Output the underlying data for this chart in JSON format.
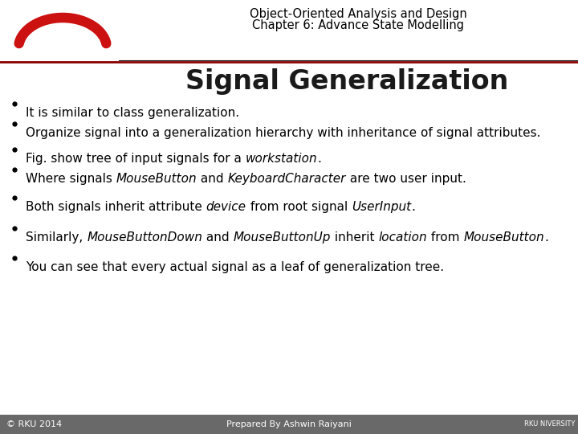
{
  "title_line1": "Object-Oriented Analysis and Design",
  "title_line2": "Chapter 6: Advance State Modelling",
  "slide_title": "Signal Generalization",
  "bullets": [
    [
      {
        "text": "It is similar to class generalization.",
        "italic": false
      }
    ],
    [
      {
        "text": "Organize signal into a generalization hierarchy with inheritance of signal attributes.",
        "italic": false
      }
    ],
    [
      {
        "text": "Fig. show tree of input signals for a ",
        "italic": false
      },
      {
        "text": "workstation",
        "italic": true
      },
      {
        "text": ".",
        "italic": false
      }
    ],
    [
      {
        "text": "Where signals ",
        "italic": false
      },
      {
        "text": "MouseButton",
        "italic": true
      },
      {
        "text": " and ",
        "italic": false
      },
      {
        "text": "KeyboardCharacter",
        "italic": true
      },
      {
        "text": " are two user input.",
        "italic": false
      }
    ],
    [
      {
        "text": "Both signals inherit attribute ",
        "italic": false
      },
      {
        "text": "device",
        "italic": true
      },
      {
        "text": " from root signal ",
        "italic": false
      },
      {
        "text": "UserInput",
        "italic": true
      },
      {
        "text": ".",
        "italic": false
      }
    ],
    [
      {
        "text": "Similarly, ",
        "italic": false
      },
      {
        "text": "MouseButtonDown",
        "italic": true
      },
      {
        "text": " and ",
        "italic": false
      },
      {
        "text": "MouseButtonUp",
        "italic": true
      },
      {
        "text": " inherit ",
        "italic": false
      },
      {
        "text": "location",
        "italic": true
      },
      {
        "text": " from ",
        "italic": false
      },
      {
        "text": "MouseButton",
        "italic": true
      },
      {
        "text": ".",
        "italic": false
      }
    ],
    [
      {
        "text": "You can see that every actual signal as a leaf of generalization tree.",
        "italic": false
      }
    ]
  ],
  "footer_left": "© RKU 2014",
  "footer_center": "Prepared By Ashwin Raiyani",
  "footer_right": "RKU NIVERSITY",
  "bg_color": "#ffffff",
  "header_line_color": "#8b0000",
  "footer_bg_color": "#696969",
  "footer_text_color": "#ffffff",
  "title_color": "#000000",
  "slide_title_color": "#1a1a1a",
  "bullet_color": "#000000",
  "accent_red": "#cc1111",
  "title_fontsize": 10.5,
  "slide_title_fontsize": 24,
  "bullet_fontsize": 11,
  "footer_fontsize": 8
}
